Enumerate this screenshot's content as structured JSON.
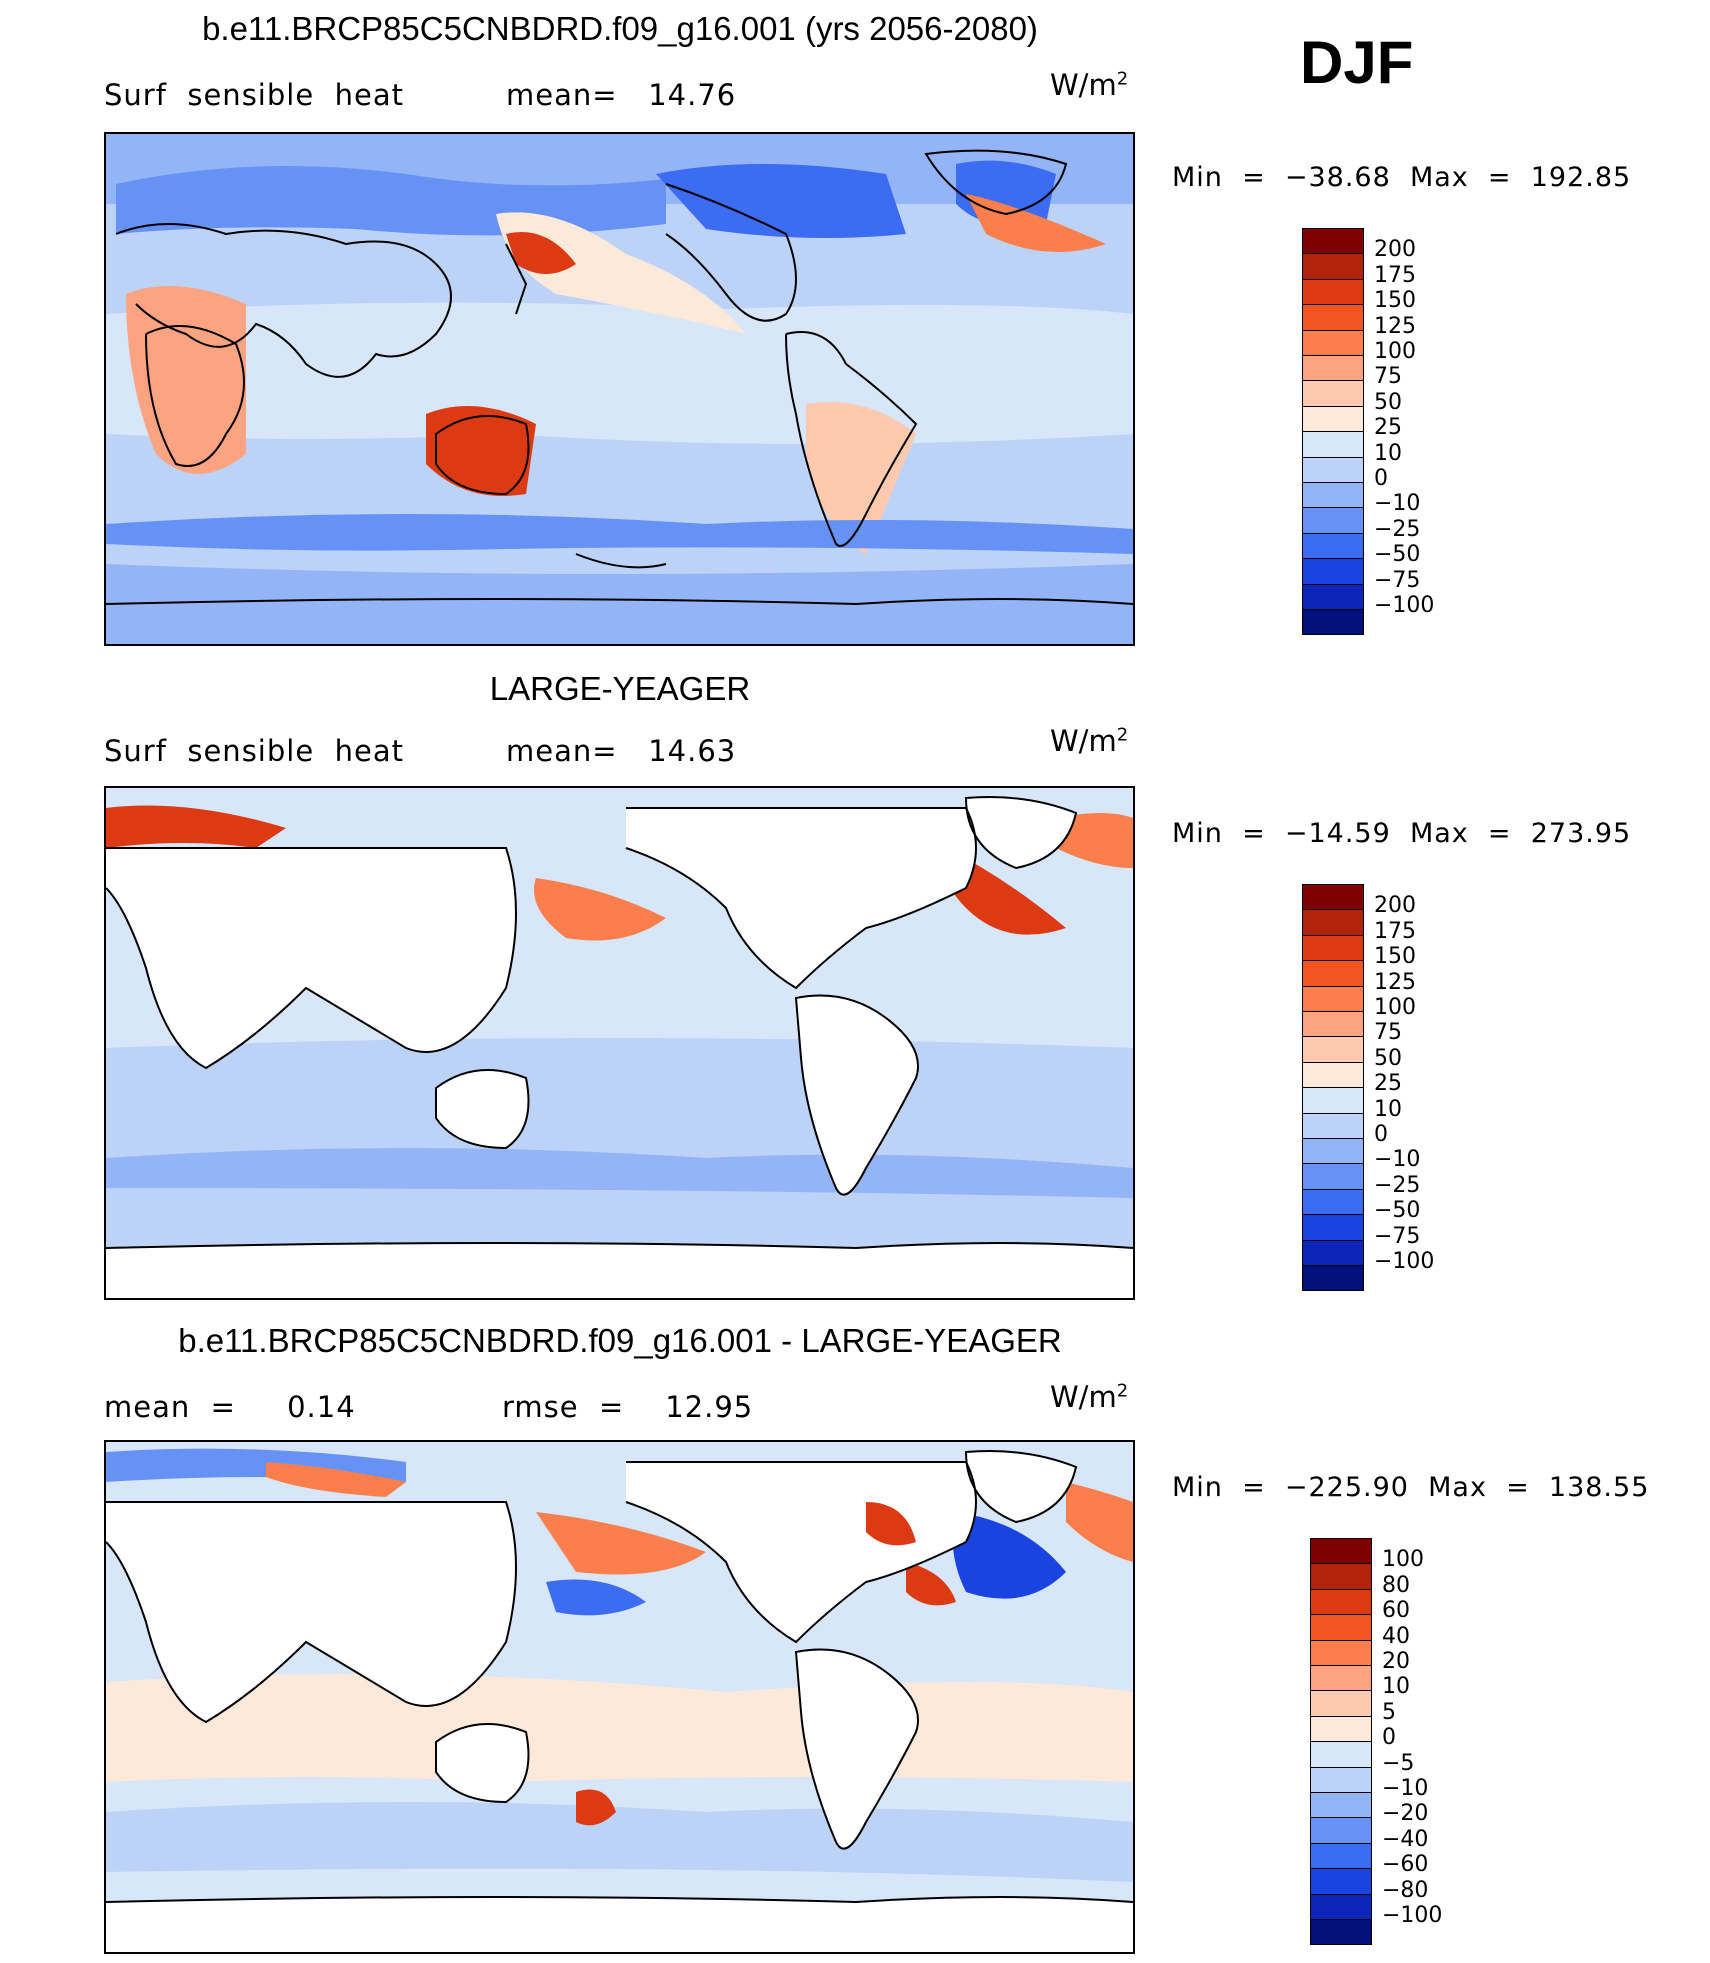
{
  "season": "DJF",
  "units": {
    "base": "W/m",
    "exp": "2"
  },
  "panels": [
    {
      "id": "model",
      "title": "b.e11.BRCP85C5CNBDRD.f09_g16.001 (yrs 2056-2080)",
      "left_label": "Surf  sensible  heat",
      "mid_label": "mean=   14.76",
      "minmax": "Min  =  −38.68  Max  =  192.85",
      "levels": [
        "200",
        "175",
        "150",
        "125",
        "100",
        "75",
        "50",
        "25",
        "10",
        "0",
        "−10",
        "−25",
        "−50",
        "−75",
        "−100"
      ],
      "colors": [
        "#7f0000",
        "#b1230b",
        "#dc3a13",
        "#f25522",
        "#fb7f4d",
        "#fca482",
        "#fdcab0",
        "#fde9d9",
        "#d7e6f8",
        "#bcd3f7",
        "#93b5f7",
        "#6792f5",
        "#3c6cf2",
        "#1a44e0",
        "#0b26b8",
        "#03107c"
      ]
    },
    {
      "id": "obs",
      "title": "LARGE-YEAGER",
      "left_label": "Surf  sensible  heat",
      "mid_label": "mean=   14.63",
      "minmax": "Min  =  −14.59  Max  =  273.95",
      "levels": [
        "200",
        "175",
        "150",
        "125",
        "100",
        "75",
        "50",
        "25",
        "10",
        "0",
        "−10",
        "−25",
        "−50",
        "−75",
        "−100"
      ],
      "colors": [
        "#7f0000",
        "#b1230b",
        "#dc3a13",
        "#f25522",
        "#fb7f4d",
        "#fca482",
        "#fdcab0",
        "#fde9d9",
        "#d7e6f8",
        "#bcd3f7",
        "#93b5f7",
        "#6792f5",
        "#3c6cf2",
        "#1a44e0",
        "#0b26b8",
        "#03107c"
      ]
    },
    {
      "id": "diff",
      "title": "b.e11.BRCP85C5CNBDRD.f09_g16.001 - LARGE-YEAGER",
      "left_label": "mean  =     0.14",
      "mid_label": "rmse  =    12.95",
      "minmax": "Min  =  −225.90  Max  =  138.55",
      "levels": [
        "100",
        "80",
        "60",
        "40",
        "20",
        "10",
        "5",
        "0",
        "−5",
        "−10",
        "−20",
        "−40",
        "−60",
        "−80",
        "−100"
      ],
      "colors": [
        "#7f0000",
        "#b1230b",
        "#dc3a13",
        "#f25522",
        "#fb7f4d",
        "#fca482",
        "#fdcab0",
        "#fde9d9",
        "#d7e6f8",
        "#bcd3f7",
        "#93b5f7",
        "#6792f5",
        "#3c6cf2",
        "#1a44e0",
        "#0b26b8",
        "#03107c"
      ]
    }
  ],
  "field_colors": {
    "ocean_light": "#d7e6f8",
    "ocean_mid": "#bcd3f7",
    "ocean_deep": "#93b5f7",
    "ice_blue": "#6792f5",
    "cold_blue": "#3c6cf2",
    "warm_light": "#fde9d9",
    "warm_mid": "#fdcab0",
    "warm": "#fb7f4d",
    "hot": "#dc3a13",
    "land_mask": "#ffffff"
  }
}
